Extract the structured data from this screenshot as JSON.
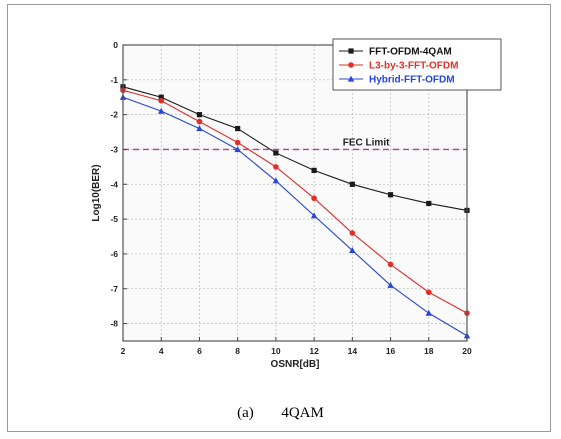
{
  "caption": {
    "label": "(a)",
    "text": "4QAM"
  },
  "chart_data": {
    "type": "line",
    "title": "",
    "xlabel": "OSNR[dB]",
    "ylabel": "Log10(BER)",
    "xlim": [
      2,
      20
    ],
    "ylim": [
      -8.5,
      0
    ],
    "xticks": [
      2,
      4,
      6,
      8,
      10,
      12,
      14,
      16,
      18,
      20
    ],
    "yticks": [
      0,
      -1,
      -2,
      -3,
      -4,
      -5,
      -6,
      -7,
      -8
    ],
    "x": [
      2,
      4,
      6,
      8,
      10,
      12,
      14,
      16,
      18,
      20
    ],
    "grid": true,
    "legend_position": "top-right",
    "series": [
      {
        "name": "FFT-OFDM-4QAM",
        "color": "#1a1a1a",
        "marker": "square",
        "values": [
          -1.2,
          -1.5,
          -2.0,
          -2.4,
          -3.1,
          -3.6,
          -4.0,
          -4.3,
          -4.55,
          -4.75
        ]
      },
      {
        "name": "L3-by-3-FFT-OFDM",
        "color": "#e0302a",
        "marker": "circle",
        "values": [
          -1.3,
          -1.6,
          -2.2,
          -2.8,
          -3.5,
          -4.4,
          -5.4,
          -6.3,
          -7.1,
          -7.7
        ]
      },
      {
        "name": "Hybrid-FFT-OFDM",
        "color": "#2646d8",
        "marker": "triangle",
        "values": [
          -1.5,
          -1.9,
          -2.4,
          -3.0,
          -3.9,
          -4.9,
          -5.9,
          -6.9,
          -7.7,
          -8.35
        ]
      }
    ],
    "annotations": [
      {
        "text": "FEC Limit",
        "y": -3,
        "color": "#c0398a",
        "style": "dashed"
      }
    ]
  }
}
